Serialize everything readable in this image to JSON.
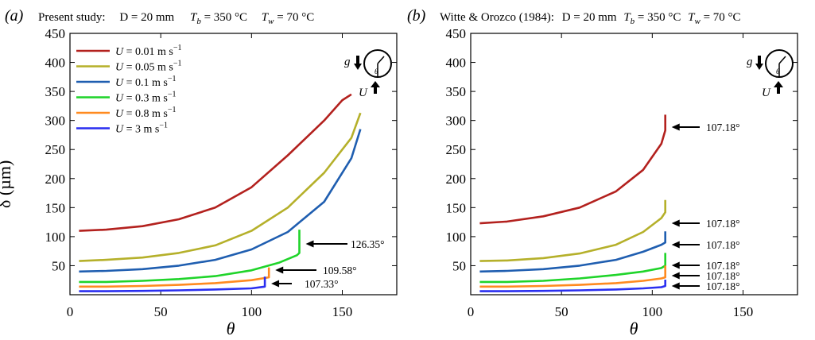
{
  "panels": [
    {
      "panel_label": "(a)",
      "subtitle": {
        "lead": "Present study:",
        "D": "D = 20 mm",
        "Tb": "T",
        "Tb_sub": "b",
        "Tb_val": " = 350 °C",
        "Tw": "T",
        "Tw_sub": "w",
        "Tw_val": " = 70 °C"
      }
    },
    {
      "panel_label": "(b)",
      "subtitle": {
        "lead": "Witte & Orozco (1984):",
        "D": "D = 20 mm",
        "Tb": "T",
        "Tb_sub": "b",
        "Tb_val": " = 350 °C",
        "Tw": "T",
        "Tw_sub": "w",
        "Tw_val": " = 70 °C"
      }
    }
  ],
  "inset": {
    "g_label": "g",
    "u_label": "U",
    "theta_label": "θ"
  },
  "colors": {
    "u001": "#b3211e",
    "u005": "#b5b02a",
    "u01": "#1f5eb0",
    "u03": "#1fd42a",
    "u08": "#ff8a1f",
    "u3": "#2a2ff0"
  },
  "chart_data": [
    {
      "type": "line",
      "panel": "(a)",
      "xlabel": "θ",
      "ylabel": "δ (µm)",
      "xlim": [
        0,
        180
      ],
      "ylim": [
        0,
        450
      ],
      "xticks": [
        0,
        50,
        100,
        150
      ],
      "yticks": [
        50,
        100,
        150,
        200,
        250,
        300,
        350,
        400,
        450
      ],
      "legend_position": "top-left",
      "series": [
        {
          "name": "U = 0.01 m s",
          "sup": "−1",
          "color_key": "u001",
          "x": [
            5,
            20,
            40,
            60,
            80,
            100,
            120,
            140,
            150,
            155
          ],
          "y": [
            110,
            112,
            118,
            130,
            150,
            185,
            240,
            300,
            335,
            345
          ]
        },
        {
          "name": "U = 0.05 m s",
          "sup": "−1",
          "color_key": "u005",
          "x": [
            5,
            20,
            40,
            60,
            80,
            100,
            120,
            140,
            155,
            160
          ],
          "y": [
            58,
            60,
            64,
            72,
            85,
            110,
            150,
            210,
            270,
            313
          ]
        },
        {
          "name": "U = 0.1 m s",
          "sup": "−1",
          "color_key": "u01",
          "x": [
            5,
            20,
            40,
            60,
            80,
            100,
            120,
            140,
            155,
            160
          ],
          "y": [
            40,
            41,
            44,
            50,
            60,
            78,
            108,
            160,
            235,
            285
          ]
        },
        {
          "name": "U = 0.3 m s",
          "sup": "−1",
          "color_key": "u03",
          "x": [
            5,
            20,
            40,
            60,
            80,
            100,
            115,
            125,
            126.35,
            126.35
          ],
          "y": [
            22,
            22,
            24,
            27,
            32,
            42,
            55,
            68,
            72,
            112
          ]
        },
        {
          "name": "U = 0.8 m s",
          "sup": "−1",
          "color_key": "u08",
          "x": [
            5,
            20,
            40,
            60,
            80,
            100,
            109.58,
            109.58
          ],
          "y": [
            14,
            14,
            15,
            17,
            20,
            25,
            30,
            47
          ]
        },
        {
          "name": "U = 3 m s",
          "sup": "−1",
          "color_key": "u3",
          "x": [
            5,
            20,
            40,
            60,
            80,
            100,
            107.33,
            107.33
          ],
          "y": [
            6,
            6,
            6.5,
            7.5,
            9,
            11,
            14,
            31
          ]
        }
      ],
      "annotations": [
        {
          "text": "126.35°",
          "x": 126.35,
          "y": 65
        },
        {
          "text": "109.58°",
          "x": 109.58,
          "y": 30
        },
        {
          "text": "107.33°",
          "x": 107.33,
          "y": 9
        }
      ]
    },
    {
      "type": "line",
      "panel": "(b)",
      "xlabel": "θ",
      "ylabel": "",
      "xlim": [
        0,
        180
      ],
      "ylim": [
        0,
        450
      ],
      "xticks": [
        0,
        50,
        100,
        150
      ],
      "yticks": [
        50,
        100,
        150,
        200,
        250,
        300,
        350,
        400,
        450
      ],
      "series": [
        {
          "color_key": "u001",
          "x": [
            5,
            20,
            40,
            60,
            80,
            95,
            105,
            107.18,
            107.18
          ],
          "y": [
            123,
            126,
            135,
            150,
            178,
            215,
            260,
            283,
            310
          ]
        },
        {
          "color_key": "u005",
          "x": [
            5,
            20,
            40,
            60,
            80,
            95,
            105,
            107.18,
            107.18
          ],
          "y": [
            58,
            59,
            63,
            71,
            86,
            108,
            132,
            142,
            163
          ]
        },
        {
          "color_key": "u01",
          "x": [
            5,
            20,
            40,
            60,
            80,
            95,
            105,
            107.18,
            107.18
          ],
          "y": [
            40,
            41,
            44,
            50,
            60,
            74,
            86,
            90,
            109
          ]
        },
        {
          "color_key": "u03",
          "x": [
            5,
            20,
            40,
            60,
            80,
            95,
            105,
            107.18,
            107.18
          ],
          "y": [
            22,
            22,
            24,
            28,
            34,
            40,
            46,
            50,
            72
          ]
        },
        {
          "color_key": "u08",
          "x": [
            5,
            20,
            40,
            60,
            80,
            95,
            105,
            107.18,
            107.18
          ],
          "y": [
            14,
            14,
            15,
            17,
            20,
            24,
            28,
            30,
            50
          ]
        },
        {
          "color_key": "u3",
          "x": [
            5,
            20,
            40,
            60,
            80,
            95,
            105,
            107.18,
            107.18
          ],
          "y": [
            6,
            6,
            6.5,
            7.5,
            9,
            11,
            13,
            15,
            26
          ]
        }
      ],
      "annotations": [
        {
          "text": "107.18°",
          "x": 107.18,
          "y": 285
        },
        {
          "text": "107.18°",
          "x": 107.18,
          "y": 153
        },
        {
          "text": "107.18°",
          "x": 107.18,
          "y": 103
        },
        {
          "text": "107.18°",
          "x": 107.18,
          "y": 61
        },
        {
          "text": "107.18°",
          "x": 107.18,
          "y": 40
        },
        {
          "text": "107.18°",
          "x": 107.18,
          "y": 20
        }
      ]
    }
  ]
}
